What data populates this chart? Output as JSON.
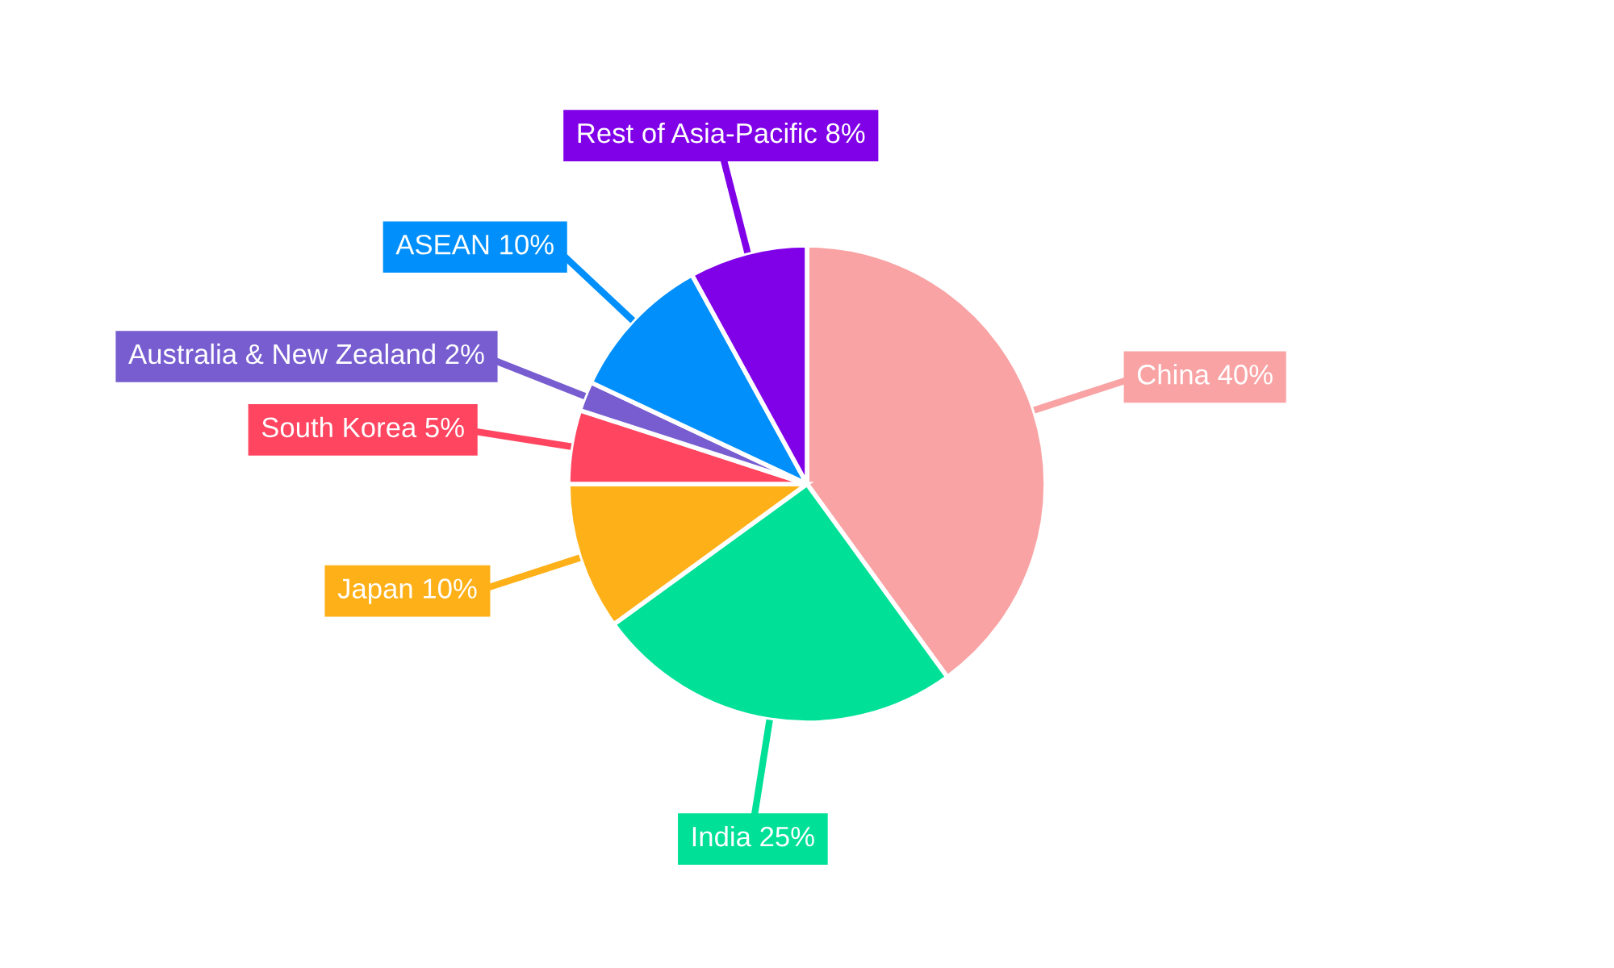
{
  "chart_data": {
    "type": "pie",
    "categories": [
      "China",
      "India",
      "Japan",
      "South Korea",
      "Australia & New Zealand",
      "ASEAN",
      "Rest of Asia-Pacific"
    ],
    "values": [
      40,
      25,
      10,
      5,
      2,
      10,
      8
    ],
    "value_labels": [
      "40%",
      "25%",
      "10%",
      "5%",
      "2%",
      "10%",
      "8%"
    ],
    "colors": [
      "#f9a3a4",
      "#00e096",
      "#feb019",
      "#ff4560",
      "#775dd0",
      "#008ffb",
      "#8000e8"
    ],
    "legend": false
  }
}
